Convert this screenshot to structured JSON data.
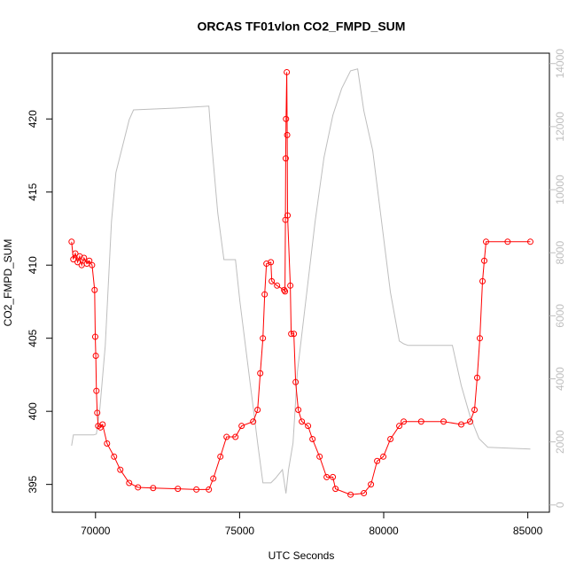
{
  "chart_data": {
    "type": "line",
    "title": "ORCAS TF01vlon CO2_FMPD_SUM",
    "xlabel": "UTC Seconds",
    "ylabel": "CO2_FMPD_SUM",
    "xlim": [
      68500,
      85750
    ],
    "xticks": [
      70000,
      75000,
      80000,
      85000
    ],
    "ylim": [
      393.1,
      424.5
    ],
    "yticks": [
      395,
      400,
      405,
      410,
      415,
      420
    ],
    "y2lim": [
      -230,
      14330
    ],
    "y2ticks": [
      0,
      2000,
      4000,
      6000,
      8000,
      10000,
      12000,
      14000
    ],
    "y2color": "#bebebe",
    "grid": false,
    "series": [
      {
        "color": "#bebebe",
        "axis": "y2",
        "marker": "none",
        "x": [
          69170,
          69232,
          69939,
          70031,
          70154,
          70338,
          70553,
          70707,
          70860,
          71014,
          71168,
          71321,
          72858,
          73933,
          74026,
          74241,
          74456,
          74855,
          75009,
          75316,
          75623,
          75808,
          76085,
          76238,
          76484,
          76607,
          76699,
          76853,
          77006,
          77313,
          77621,
          77928,
          78235,
          78543,
          78850,
          79096,
          79311,
          79618,
          79926,
          80233,
          80540,
          80694,
          80848,
          82384,
          82691,
          82999,
          83306,
          83613,
          85088
        ],
        "values": [
          1880,
          2220,
          2220,
          2250,
          3090,
          5060,
          8990,
          10540,
          11100,
          11660,
          12220,
          12530,
          12590,
          12650,
          11520,
          9270,
          7780,
          7780,
          6460,
          4220,
          1970,
          700,
          700,
          840,
          1120,
          365,
          1120,
          1970,
          4220,
          6600,
          8990,
          11020,
          12360,
          13210,
          13770,
          13830,
          12500,
          11240,
          8990,
          6740,
          5200,
          5110,
          5060,
          5060,
          3790,
          2810,
          2110,
          1830,
          1770
        ]
      },
      {
        "color": "#ff0000",
        "axis": "y",
        "marker": "circle",
        "x": [
          69170,
          69230,
          69300,
          69380,
          69450,
          69520,
          69600,
          69700,
          69785,
          69880,
          69969,
          69990,
          70010,
          70031,
          70060,
          70092,
          70170,
          70246,
          70400,
          70645,
          70860,
          71168,
          71475,
          72000,
          72858,
          73500,
          73933,
          74087,
          74333,
          74548,
          74855,
          75070,
          75470,
          75623,
          75716,
          75808,
          75869,
          75931,
          76085,
          76115,
          76300,
          76545,
          76576,
          76590,
          76600,
          76610,
          76637,
          76650,
          76665,
          76760,
          76791,
          76883,
          76945,
          77037,
          77160,
          77375,
          77529,
          77775,
          78020,
          78235,
          78328,
          78850,
          79311,
          79557,
          79772,
          79987,
          80233,
          80540,
          80694,
          81300,
          82077,
          82691,
          82999,
          83152,
          83244,
          83336,
          83429,
          83490,
          83551,
          84300,
          85088
        ],
        "values": [
          411.6,
          410.4,
          410.8,
          410.2,
          410.6,
          410.0,
          410.5,
          410.1,
          410.3,
          410.0,
          408.3,
          405.1,
          403.8,
          401.4,
          399.9,
          399.0,
          398.9,
          399.1,
          397.8,
          396.9,
          396.0,
          395.1,
          394.8,
          394.75,
          394.7,
          394.65,
          394.65,
          395.4,
          396.9,
          398.25,
          398.25,
          399.0,
          399.3,
          400.1,
          402.6,
          405.0,
          408.0,
          410.1,
          410.2,
          408.9,
          408.6,
          408.3,
          408.2,
          413.1,
          417.3,
          420.0,
          423.2,
          418.9,
          413.4,
          408.6,
          405.3,
          405.3,
          402.0,
          400.1,
          399.3,
          399.0,
          398.1,
          396.9,
          395.5,
          395.5,
          394.7,
          394.3,
          394.4,
          395.0,
          396.6,
          396.9,
          398.1,
          399.0,
          399.3,
          399.3,
          399.3,
          399.1,
          399.3,
          400.1,
          402.3,
          405.0,
          408.9,
          410.3,
          411.6,
          411.6,
          411.6
        ]
      }
    ]
  }
}
